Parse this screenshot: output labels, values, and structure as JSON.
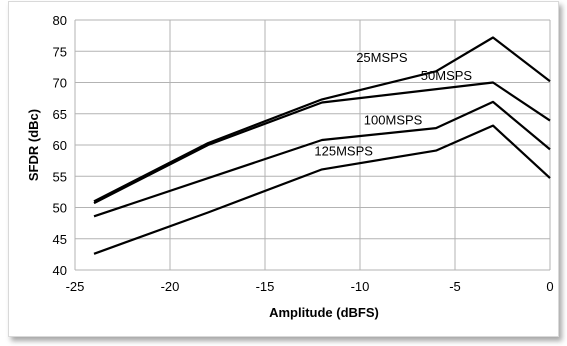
{
  "chart_data": {
    "type": "line",
    "xlabel": "Amplitude (dBFS)",
    "ylabel": "SFDR (dBc)",
    "xlim": [
      -25,
      0
    ],
    "ylim": [
      40,
      80
    ],
    "x_ticks": [
      -25,
      -20,
      -15,
      -10,
      -5,
      0
    ],
    "y_ticks": [
      40,
      45,
      50,
      55,
      60,
      65,
      70,
      75,
      80
    ],
    "grid": true,
    "legend": "none (series labelled directly on chart)",
    "line_color": "#000000",
    "grid_color": "#b3b3b3",
    "series": [
      {
        "name": "25MSPS",
        "x": [
          -24,
          -18,
          -12,
          -6,
          -3,
          0
        ],
        "y": [
          51.0,
          60.3,
          67.3,
          71.8,
          77.2,
          70.2
        ]
      },
      {
        "name": "50MSPS",
        "x": [
          -24,
          -18,
          -12,
          -3,
          0
        ],
        "y": [
          50.7,
          60.0,
          66.8,
          70.0,
          63.9
        ]
      },
      {
        "name": "100MSPS",
        "x": [
          -24,
          -12,
          -6,
          -3,
          0
        ],
        "y": [
          48.6,
          60.8,
          62.7,
          66.9,
          59.3
        ]
      },
      {
        "name": "125MSPS",
        "x": [
          -24,
          -18,
          -12,
          -6,
          -3,
          0
        ],
        "y": [
          42.6,
          49.2,
          56.1,
          59.1,
          63.1,
          54.7
        ]
      }
    ]
  }
}
